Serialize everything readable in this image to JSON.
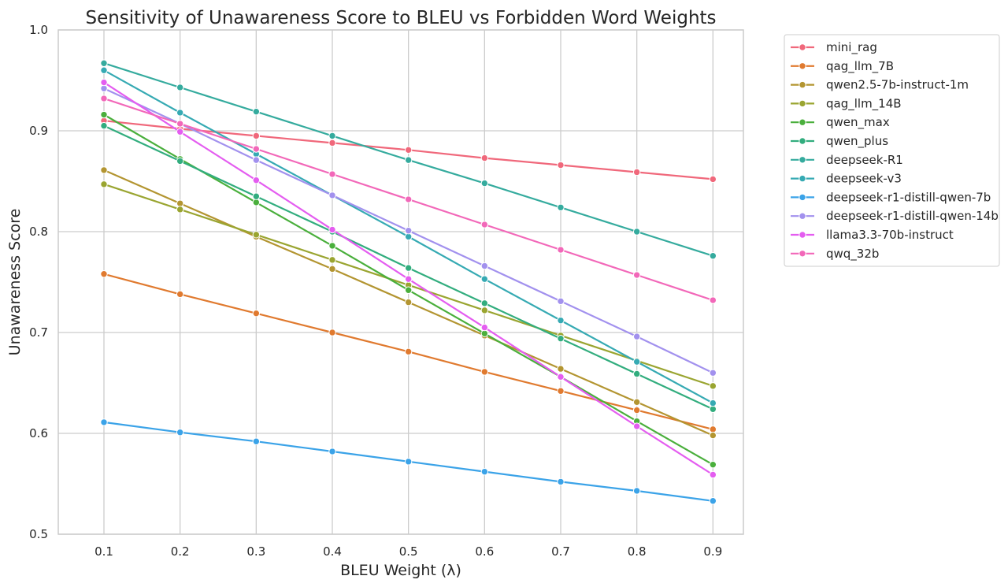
{
  "chart_data": {
    "type": "line",
    "title": "Sensitivity of Unawareness Score to BLEU vs Forbidden Word Weights",
    "xlabel": "BLEU Weight (λ)",
    "ylabel": "Unawareness Score",
    "x": [
      0.1,
      0.2,
      0.3,
      0.4,
      0.5,
      0.6,
      0.7,
      0.8,
      0.9
    ],
    "xticks": [
      "0.1",
      "0.2",
      "0.3",
      "0.4",
      "0.5",
      "0.6",
      "0.7",
      "0.8",
      "0.9"
    ],
    "xlim": [
      0.04,
      0.94
    ],
    "ylim": [
      0.5,
      1.0
    ],
    "yticks": [
      "0.5",
      "0.6",
      "0.7",
      "0.8",
      "0.9",
      "1.0"
    ],
    "grid": true,
    "legend_position": "outside-right",
    "series": [
      {
        "name": "mini_rag",
        "color": "#f0687b",
        "values": [
          0.91,
          0.902,
          0.895,
          0.888,
          0.881,
          0.873,
          0.866,
          0.859,
          0.852
        ]
      },
      {
        "name": "qag_llm_7B",
        "color": "#e07a2f",
        "values": [
          0.758,
          0.738,
          0.719,
          0.7,
          0.681,
          0.661,
          0.642,
          0.623,
          0.604
        ]
      },
      {
        "name": "qwen2.5-7b-instruct-1m",
        "color": "#b39531",
        "values": [
          0.861,
          0.828,
          0.795,
          0.763,
          0.73,
          0.697,
          0.664,
          0.631,
          0.598
        ]
      },
      {
        "name": "qag_llm_14B",
        "color": "#9aa531",
        "values": [
          0.847,
          0.822,
          0.797,
          0.772,
          0.747,
          0.722,
          0.697,
          0.672,
          0.647
        ]
      },
      {
        "name": "qwen_max",
        "color": "#4aaf3c",
        "values": [
          0.916,
          0.872,
          0.829,
          0.786,
          0.742,
          0.699,
          0.656,
          0.612,
          0.569
        ]
      },
      {
        "name": "qwen_plus",
        "color": "#32ad7e",
        "values": [
          0.905,
          0.87,
          0.835,
          0.8,
          0.764,
          0.729,
          0.694,
          0.659,
          0.624
        ]
      },
      {
        "name": "deepseek-R1",
        "color": "#35ab9e",
        "values": [
          0.967,
          0.943,
          0.919,
          0.895,
          0.871,
          0.848,
          0.824,
          0.8,
          0.776
        ]
      },
      {
        "name": "deepseek-v3",
        "color": "#36aab3",
        "values": [
          0.96,
          0.918,
          0.877,
          0.836,
          0.795,
          0.753,
          0.712,
          0.671,
          0.63
        ]
      },
      {
        "name": "deepseek-r1-distill-qwen-7b",
        "color": "#3ba3e8",
        "values": [
          0.611,
          0.601,
          0.592,
          0.582,
          0.572,
          0.562,
          0.552,
          0.543,
          0.533
        ]
      },
      {
        "name": "deepseek-r1-distill-qwen-14b",
        "color": "#a291ee",
        "values": [
          0.942,
          0.907,
          0.871,
          0.836,
          0.801,
          0.766,
          0.731,
          0.696,
          0.66
        ]
      },
      {
        "name": "llama3.3-70b-instruct",
        "color": "#e45df0",
        "values": [
          0.948,
          0.899,
          0.851,
          0.802,
          0.753,
          0.705,
          0.656,
          0.607,
          0.559
        ]
      },
      {
        "name": "qwq_32b",
        "color": "#f268b9",
        "values": [
          0.932,
          0.907,
          0.882,
          0.857,
          0.832,
          0.807,
          0.782,
          0.757,
          0.732
        ]
      }
    ]
  }
}
